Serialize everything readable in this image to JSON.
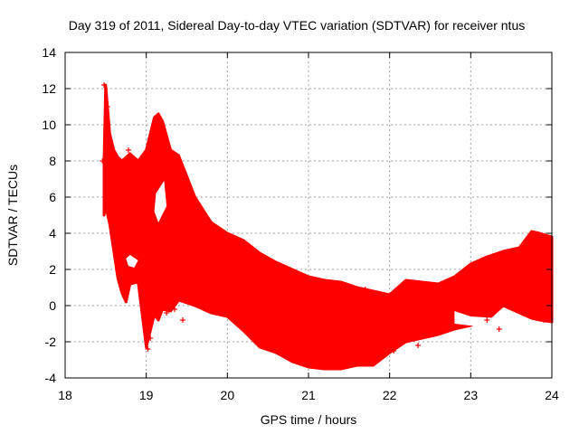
{
  "chart_data": {
    "type": "scatter",
    "title": "Day 319 of 2011, Sidereal Day-to-day VTEC variation (SDTVAR) for receiver ntus",
    "xlabel": "GPS time / hours",
    "ylabel": "SDTVAR / TECUs",
    "xlim": [
      18,
      24
    ],
    "ylim": [
      -4,
      14
    ],
    "xticks": [
      "18",
      "19",
      "20",
      "21",
      "22",
      "23",
      "24"
    ],
    "yticks": [
      "-4",
      "-2",
      "0",
      "2",
      "4",
      "6",
      "8",
      "10",
      "12",
      "14"
    ],
    "grid": true,
    "marker": "+",
    "series_color": "#ff0000",
    "band": {
      "name": "SDTVAR scatter envelope",
      "x": [
        18.48,
        18.5,
        18.55,
        18.6,
        18.65,
        18.7,
        18.75,
        18.8,
        18.9,
        19.0,
        19.1,
        19.15,
        19.2,
        19.3,
        19.4,
        19.6,
        19.8,
        20.0,
        20.2,
        20.4,
        20.6,
        20.8,
        21.0,
        21.2,
        21.4,
        21.6,
        21.8,
        22.0,
        22.2,
        22.4,
        22.6,
        22.8,
        23.0,
        23.2,
        23.4,
        23.6,
        23.75,
        23.85,
        24.0
      ],
      "upper": [
        8.0,
        12.2,
        9.5,
        8.6,
        8.2,
        8.0,
        8.2,
        8.4,
        8.0,
        8.6,
        10.4,
        10.6,
        10.2,
        8.6,
        8.3,
        6.0,
        4.6,
        4.0,
        3.6,
        2.9,
        2.4,
        2.0,
        1.6,
        1.4,
        1.3,
        1.0,
        0.8,
        0.6,
        1.4,
        1.3,
        1.2,
        1.6,
        2.3,
        2.7,
        3.0,
        3.2,
        4.1,
        4.0,
        3.8
      ],
      "lower": [
        5.0,
        5.5,
        4.5,
        3.0,
        1.5,
        0.7,
        0.2,
        1.2,
        1.3,
        -2.3,
        -0.5,
        -0.8,
        -0.2,
        -0.3,
        0.3,
        0.0,
        -0.4,
        -0.6,
        -1.4,
        -2.3,
        -2.6,
        -3.1,
        -3.4,
        -3.5,
        -3.5,
        -3.3,
        -3.3,
        -2.6,
        -2.0,
        -1.8,
        -1.6,
        -1.3,
        -1.1,
        -0.8,
        0.0,
        -0.4,
        -0.7,
        -0.8,
        -0.9
      ]
    },
    "outliers": [
      {
        "x": 18.48,
        "y": 12.2
      },
      {
        "x": 18.52,
        "y": 11.0
      },
      {
        "x": 18.46,
        "y": 8.0
      },
      {
        "x": 18.78,
        "y": 8.6
      },
      {
        "x": 18.82,
        "y": 7.6
      },
      {
        "x": 18.7,
        "y": 4.9
      },
      {
        "x": 18.72,
        "y": 0.7
      },
      {
        "x": 19.02,
        "y": -2.4
      },
      {
        "x": 19.05,
        "y": -1.8
      },
      {
        "x": 19.25,
        "y": -0.4
      },
      {
        "x": 19.45,
        "y": -0.8
      },
      {
        "x": 19.35,
        "y": -0.2
      },
      {
        "x": 22.35,
        "y": -2.2
      },
      {
        "x": 22.05,
        "y": -2.5
      },
      {
        "x": 21.7,
        "y": 0.9
      },
      {
        "x": 23.35,
        "y": -1.3
      },
      {
        "x": 23.2,
        "y": -0.8
      },
      {
        "x": 23.9,
        "y": -0.8
      }
    ],
    "gaps": [
      {
        "x": [
          18.75,
          18.8,
          18.9,
          18.85,
          18.78
        ],
        "y": [
          2.6,
          2.8,
          2.5,
          2.1,
          2.2
        ]
      },
      {
        "x": [
          19.12,
          19.22,
          19.25,
          19.15,
          19.1
        ],
        "y": [
          6.2,
          6.9,
          5.5,
          4.6,
          5.2
        ]
      },
      {
        "x": [
          22.8,
          23.0,
          23.35,
          23.35,
          22.8
        ],
        "y": [
          -0.3,
          -0.6,
          -0.7,
          -1.3,
          -1.0
        ]
      }
    ]
  }
}
